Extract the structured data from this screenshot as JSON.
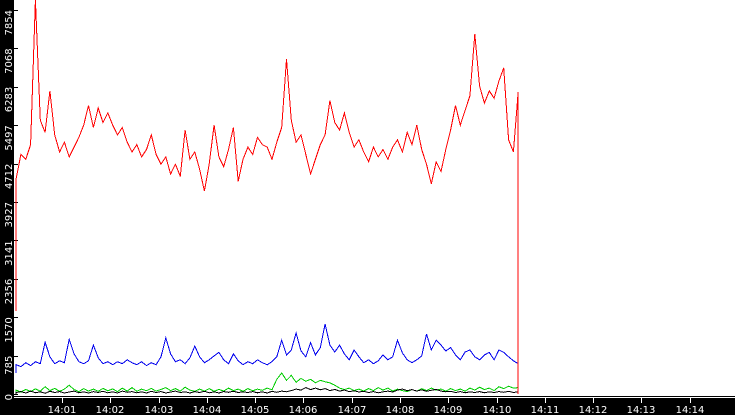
{
  "chart_data": {
    "type": "line",
    "title": "",
    "legend": false,
    "grid": false,
    "plot_background": "#ffffff",
    "axis_strip_background": "#000000",
    "axis_text_color": "#ffffff",
    "axis_line_color": "#000000",
    "x_axis": {
      "unit": "time",
      "start_time": "14:00",
      "end_min": 14.94,
      "tick_minutes": [
        1,
        2,
        3,
        4,
        5,
        6,
        7,
        8,
        9,
        10,
        11,
        12,
        13,
        14
      ],
      "tick_labels": [
        "14:01",
        "14:02",
        "14:03",
        "14:04",
        "14:05",
        "14:06",
        "14:07",
        "14:08",
        "14:09",
        "14:10",
        "14:11",
        "14:12",
        "14:13",
        "14:14"
      ]
    },
    "y_axis": {
      "min": 0,
      "max": 7854,
      "top_clip_value": 8058,
      "tick_values": [
        0,
        785.4,
        1570.8,
        2356.2,
        3141.6,
        3927,
        4712.4,
        5497.8,
        6283.2,
        7068.6,
        7854
      ],
      "tick_labels": [
        "0",
        "785",
        "1570",
        "2356",
        "3141",
        "3927",
        "4712",
        "5497",
        "6283",
        "7068",
        "7854"
      ]
    },
    "data_start_min": 0.05,
    "data_end_min": 10.5,
    "sample_step_min": 0.1,
    "series": [
      {
        "name": "red-series",
        "color": "#ff0000",
        "start_value": 1700,
        "drops_to_zero_at_end": true,
        "values": [
          4400,
          4900,
          4800,
          5100,
          8058,
          5600,
          5350,
          6200,
          5300,
          4950,
          5150,
          4850,
          5050,
          5250,
          5500,
          5900,
          5450,
          5850,
          5550,
          5750,
          5500,
          5300,
          5450,
          5150,
          4950,
          5100,
          4850,
          5000,
          5300,
          4900,
          4700,
          4850,
          4500,
          4700,
          4450,
          5400,
          4800,
          4950,
          4600,
          4150,
          4700,
          5500,
          4850,
          4650,
          5000,
          5450,
          4350,
          4800,
          5050,
          4900,
          5250,
          5100,
          5050,
          4800,
          5150,
          5450,
          6850,
          5600,
          5150,
          5300,
          4900,
          4500,
          4800,
          5100,
          5300,
          6000,
          5550,
          5400,
          5750,
          5350,
          5050,
          5200,
          4950,
          4750,
          5050,
          4850,
          5000,
          4800,
          5050,
          5200,
          4950,
          5350,
          5100,
          5500,
          5000,
          4700,
          4300,
          4750,
          4550,
          5000,
          5400,
          5900,
          5500,
          5800,
          6100,
          7360,
          6300,
          5950,
          6200,
          6050,
          6400,
          6670,
          5200,
          4950,
          6180
        ]
      },
      {
        "name": "blue-series",
        "color": "#0000ee",
        "start_value": 430,
        "drops_to_zero_at_end": true,
        "values": [
          600,
          560,
          640,
          580,
          660,
          620,
          1060,
          760,
          620,
          680,
          640,
          1120,
          820,
          660,
          620,
          680,
          1000,
          740,
          620,
          660,
          600,
          660,
          620,
          700,
          640,
          600,
          660,
          580,
          640,
          600,
          760,
          1150,
          820,
          660,
          700,
          620,
          740,
          980,
          760,
          640,
          700,
          780,
          850,
          700,
          620,
          820,
          680,
          600,
          660,
          620,
          700,
          640,
          600,
          660,
          760,
          1100,
          800,
          900,
          1250,
          880,
          760,
          1050,
          800,
          950,
          1430,
          1000,
          860,
          1000,
          820,
          700,
          900,
          760,
          640,
          700,
          620,
          680,
          800,
          700,
          760,
          1100,
          840,
          700,
          640,
          700,
          780,
          1230,
          900,
          1100,
          1000,
          880,
          950,
          800,
          700,
          860,
          900,
          760,
          700,
          800,
          850,
          700,
          900,
          850,
          760,
          680,
          620
        ]
      },
      {
        "name": "green-series",
        "color": "#00cc00",
        "start_value": 0,
        "drops_to_zero_at_end": true,
        "values": [
          80,
          40,
          95,
          50,
          105,
          60,
          150,
          70,
          115,
          55,
          100,
          180,
          90,
          50,
          110,
          60,
          100,
          55,
          115,
          65,
          105,
          50,
          120,
          60,
          130,
          55,
          100,
          65,
          115,
          60,
          95,
          130,
          70,
          110,
          60,
          140,
          80,
          55,
          100,
          60,
          110,
          55,
          95,
          60,
          120,
          70,
          100,
          55,
          110,
          65,
          100,
          75,
          120,
          85,
          300,
          430,
          280,
          380,
          240,
          320,
          260,
          300,
          230,
          280,
          250,
          230,
          180,
          120,
          90,
          120,
          70,
          100,
          60,
          110,
          70,
          130,
          80,
          120,
          60,
          100,
          70,
          50,
          90,
          60,
          110,
          70,
          120,
          80,
          100,
          60,
          110,
          70,
          100,
          60,
          120,
          80,
          140,
          90,
          120,
          70,
          150,
          110,
          160,
          120,
          130
        ]
      },
      {
        "name": "black-series",
        "color": "#000000",
        "start_value": 0,
        "drops_to_zero_at_end": true,
        "values": [
          30,
          50,
          20,
          60,
          25,
          45,
          15,
          55,
          30,
          50,
          20,
          40,
          60,
          25,
          45,
          20,
          50,
          30,
          55,
          25,
          45,
          20,
          60,
          35,
          50,
          25,
          45,
          20,
          55,
          30,
          50,
          20,
          40,
          60,
          30,
          45,
          20,
          50,
          30,
          55,
          25,
          45,
          20,
          50,
          35,
          55,
          30,
          45,
          30,
          50,
          25,
          45,
          20,
          55,
          35,
          60,
          45,
          70,
          100,
          80,
          130,
          90,
          120,
          85,
          110,
          70,
          95,
          60,
          80,
          50,
          65,
          40,
          55,
          30,
          50,
          25,
          45,
          60,
          40,
          80,
          100,
          70,
          90,
          60,
          85,
          55,
          75,
          95,
          60,
          45,
          55,
          30,
          50,
          25,
          45,
          30,
          50,
          25,
          45,
          30,
          50,
          35,
          55,
          30,
          45
        ]
      }
    ]
  }
}
